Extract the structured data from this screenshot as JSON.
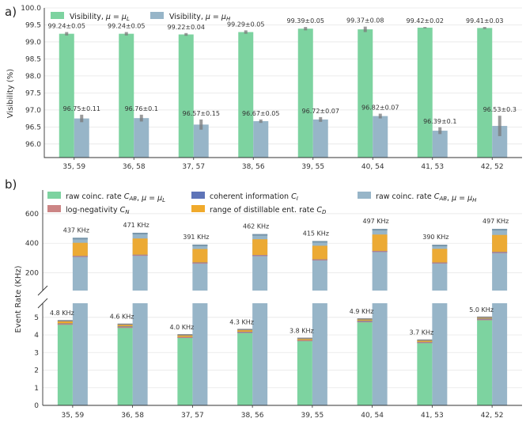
{
  "chart_data": [
    {
      "type": "bar",
      "panel_label": "a)",
      "ylabel": "Visibility (%)",
      "ylim": [
        95.6,
        100.0
      ],
      "yticks": [
        "96.0",
        "96.5",
        "97.0",
        "97.5",
        "98.0",
        "98.5",
        "99.0",
        "99.5",
        "100.0"
      ],
      "categories": [
        "35, 59",
        "36, 58",
        "37, 57",
        "38, 56",
        "39, 55",
        "40, 54",
        "41, 53",
        "42, 52"
      ],
      "legend": [
        "Visibility, μ = μL",
        "Visibility, μ = μH"
      ],
      "series": [
        {
          "name": "Visibility, μ = μL",
          "color": "#7dd3a0",
          "values": [
            99.24,
            99.24,
            99.22,
            99.29,
            99.39,
            99.37,
            99.42,
            99.41
          ],
          "errors": [
            0.05,
            0.05,
            0.04,
            0.05,
            0.05,
            0.08,
            0.02,
            0.03
          ],
          "labels": [
            "99.24±0.05",
            "99.24±0.05",
            "99.22±0.04",
            "99.29±0.05",
            "99.39±0.05",
            "99.37±0.08",
            "99.42±0.02",
            "99.41±0.03"
          ]
        },
        {
          "name": "Visibility, μ = μH",
          "color": "#97b5c8",
          "values": [
            96.75,
            96.76,
            96.57,
            96.67,
            96.72,
            96.82,
            96.39,
            96.53
          ],
          "errors": [
            0.11,
            0.1,
            0.15,
            0.05,
            0.07,
            0.07,
            0.1,
            0.3
          ],
          "labels": [
            "96.75±0.11",
            "96.76±0.1",
            "96.57±0.15",
            "96.67±0.05",
            "96.72±0.07",
            "96.82±0.07",
            "96.39±0.1",
            "96.53±0.3"
          ]
        }
      ]
    },
    {
      "type": "bar",
      "panel_label": "b)",
      "ylabel": "Event Rate (KHz)",
      "categories": [
        "35, 59",
        "36, 58",
        "37, 57",
        "38, 56",
        "39, 55",
        "40, 54",
        "41, 53",
        "42, 52"
      ],
      "upper_ylim": [
        80,
        760
      ],
      "upper_yticks": [
        "200",
        "400",
        "600"
      ],
      "lower_ylim": [
        0,
        5.8
      ],
      "lower_yticks": [
        "0",
        "1",
        "2",
        "3",
        "4",
        "5"
      ],
      "legend": [
        "raw coinc. rate CAB, μ = μL",
        "log-negativity CN",
        "coherent information CI",
        "range of distillable ent. rate CD",
        "raw coinc. rate CAB, μ = μH"
      ],
      "colors": {
        "raw_L": "#7dd3a0",
        "raw_H": "#97b5c8",
        "ci": "#5e74b8",
        "cn": "#cc8585",
        "cd": "#f0aa2c"
      },
      "series": [
        {
          "name": "raw coinc. rate CAB, μ = μL",
          "values": [
            4.8,
            4.6,
            4.0,
            4.3,
            3.8,
            4.9,
            3.7,
            5.0
          ],
          "labels": [
            "4.8 KHz",
            "4.6 KHz",
            "4.0 KHz",
            "4.3 KHz",
            "3.8 KHz",
            "4.9 KHz",
            "3.7 KHz",
            "5.0 KHz"
          ],
          "cn": [
            4.6,
            4.42,
            3.85,
            4.13,
            3.67,
            4.74,
            3.56,
            4.86
          ],
          "ci": [
            4.65,
            4.48,
            3.88,
            4.18,
            3.7,
            4.8,
            3.6,
            4.92
          ]
        },
        {
          "name": "raw coinc. rate CAB, μ = μH",
          "values": [
            437,
            471,
            391,
            462,
            415,
            497,
            390,
            497
          ],
          "labels": [
            "437 KHz",
            "471 KHz",
            "391 KHz",
            "462 KHz",
            "415 KHz",
            "497 KHz",
            "390 KHz",
            "497 KHz"
          ],
          "cn": [
            310,
            318,
            265,
            316,
            287,
            344,
            266,
            336
          ],
          "ci": [
            314,
            322,
            270,
            320,
            291,
            348,
            270,
            341
          ],
          "cd_top": [
            403,
            432,
            361,
            427,
            383,
            459,
            362,
            456
          ]
        }
      ]
    }
  ]
}
